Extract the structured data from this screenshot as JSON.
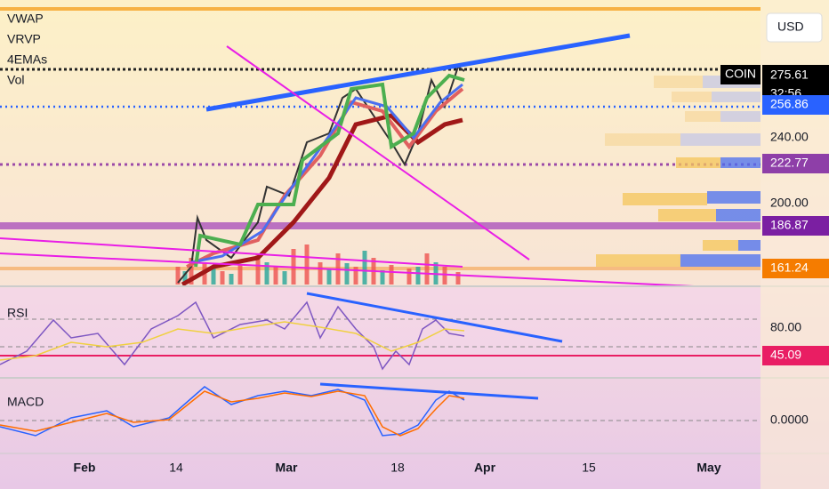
{
  "header": {
    "currency": "USD",
    "symbol": "COIN"
  },
  "indicators": [
    "VWAP",
    "VRVP",
    "4EMAs",
    "Vol"
  ],
  "price_scale": {
    "current": "275.61",
    "countdown": "32:56",
    "ticks": [
      "240.00",
      "200.00"
    ],
    "tags": [
      "256.86",
      "222.77",
      "186.87",
      "161.24"
    ]
  },
  "rsi": {
    "label": "RSI",
    "tick": "80.00",
    "value": "45.09"
  },
  "macd": {
    "label": "MACD",
    "tick": "0.0000"
  },
  "time_axis": [
    "Feb",
    "14",
    "Mar",
    "18",
    "Apr",
    "15",
    "May"
  ]
}
